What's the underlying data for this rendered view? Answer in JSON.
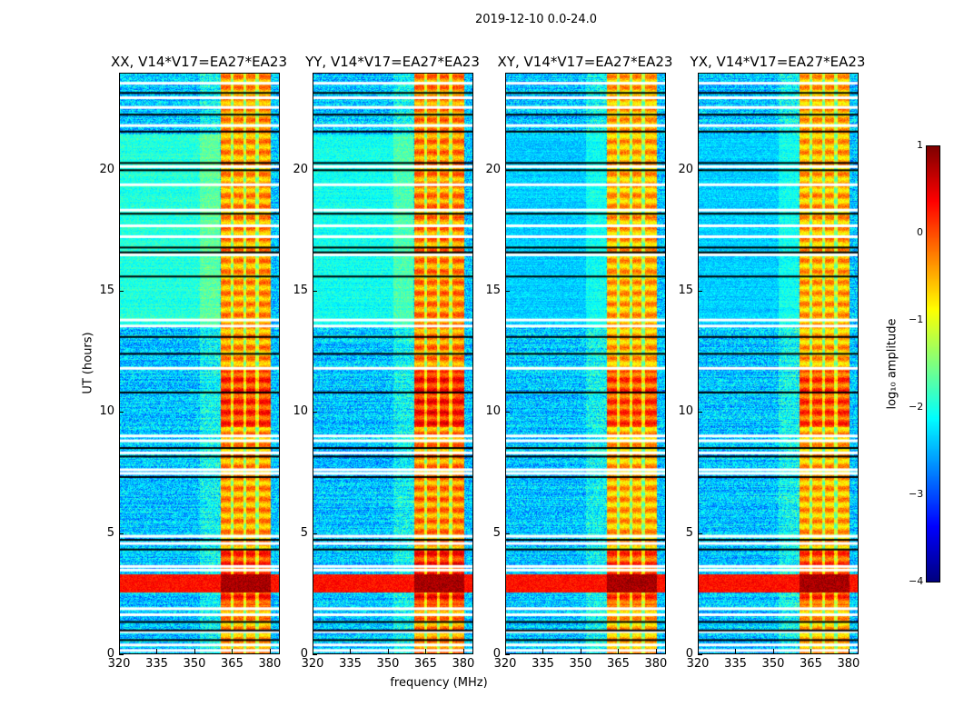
{
  "suptitle": "2019-12-10 0.0-24.0",
  "chart_data": {
    "type": "heatmap",
    "title": "2019-12-10 0.0-24.0",
    "xlabel": "frequency (MHz)",
    "ylabel": "UT (hours)",
    "xlim": [
      320,
      384
    ],
    "ylim": [
      0,
      24
    ],
    "xticks": [
      "320",
      "335",
      "350",
      "365",
      "380"
    ],
    "yticks": [
      "0",
      "5",
      "10",
      "15",
      "20"
    ],
    "panels": [
      {
        "title": "XX, V14*V17=EA27*EA23",
        "band_level": -0.4,
        "green_level": -1.5
      },
      {
        "title": "YY, V14*V17=EA27*EA23",
        "band_level": -0.3,
        "green_level": -1.7
      },
      {
        "title": "XY, V14*V17=EA27*EA23",
        "band_level": -0.5,
        "green_level": -2.3
      },
      {
        "title": "YX, V14*V17=EA27*EA23",
        "band_level": -0.5,
        "green_level": -2.3
      }
    ],
    "bright_band_mhz": [
      360.5,
      380.5
    ],
    "band_dividers_mhz": [
      365,
      370,
      375
    ],
    "rfi_hours": [
      2.55,
      3.3
    ],
    "flag_rows_white_hours": [
      0.12,
      0.35,
      0.9,
      1.6,
      1.85,
      3.45,
      3.6,
      4.55,
      4.85,
      7.45,
      7.6,
      8.3,
      8.8,
      9.0,
      11.8,
      13.55,
      13.8,
      16.5,
      17.25,
      17.7,
      18.35,
      19.4,
      20.15,
      21.85,
      22.6,
      23.0,
      23.6
    ],
    "flag_rows_black_hours": [
      0.55,
      0.95,
      1.3,
      4.3,
      4.7,
      7.3,
      8.15,
      8.5,
      10.8,
      12.4,
      13.1,
      15.6,
      16.6,
      16.8,
      18.2,
      20.0,
      20.3,
      21.6,
      22.3,
      23.2
    ],
    "colorbar": {
      "label": "log₁₀ amplitude",
      "range": [
        -4,
        1
      ],
      "ticks": [
        "1",
        "0",
        "−1",
        "−2",
        "−3",
        "−4"
      ],
      "colormap": "jet"
    }
  }
}
